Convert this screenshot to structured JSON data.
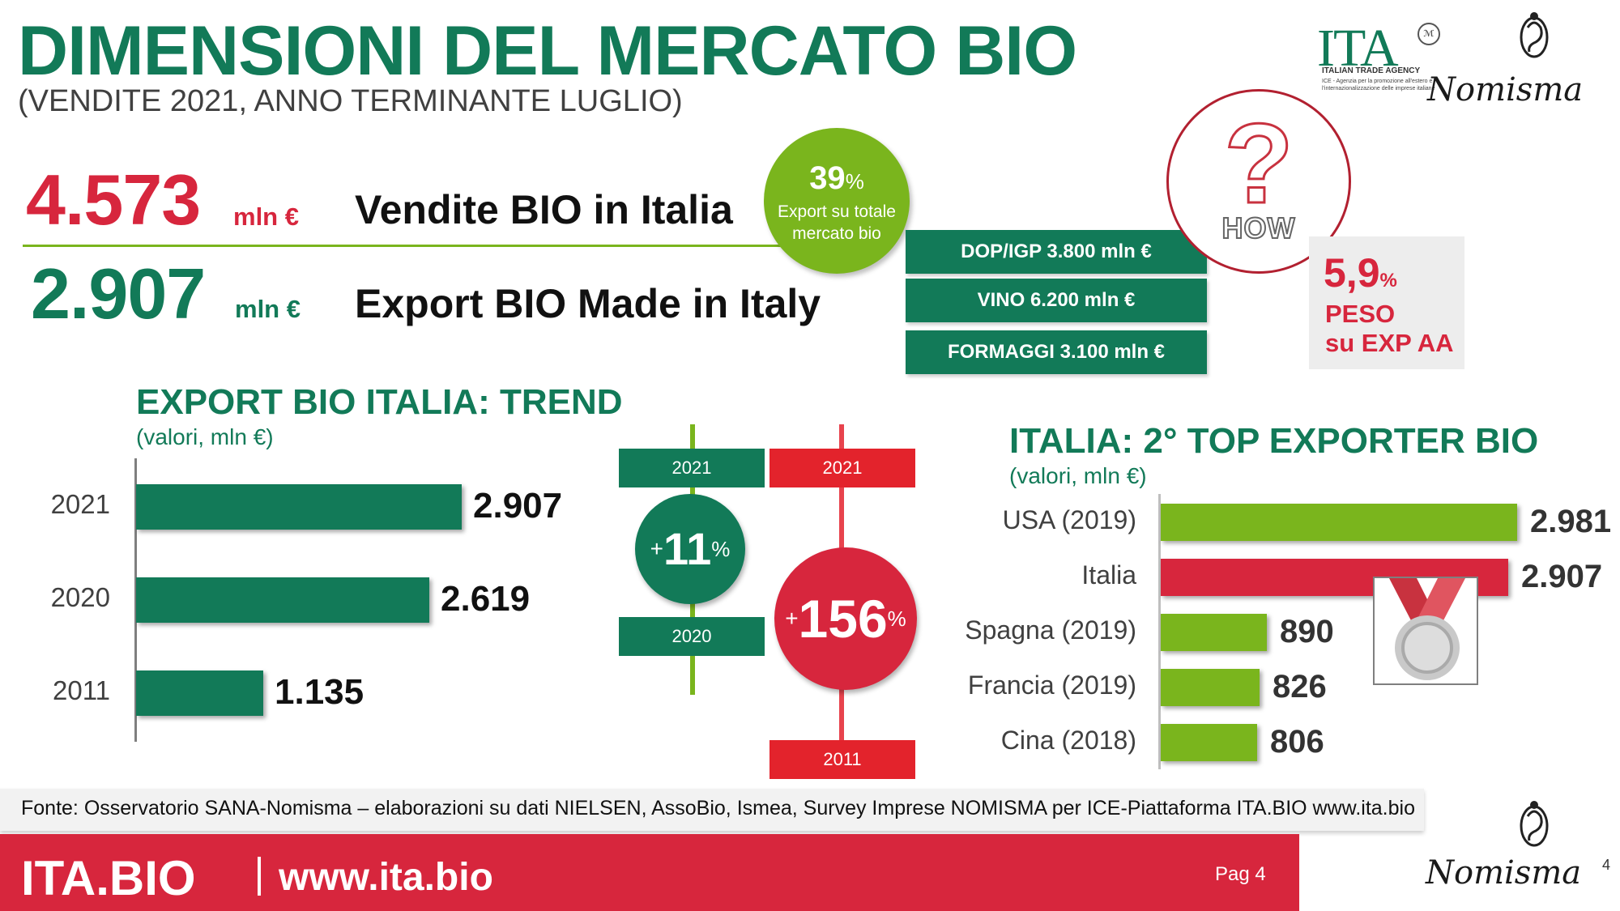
{
  "header": {
    "title": "DIMENSIONI DEL MERCATO BIO",
    "subtitle": "(VENDITE 2021, ANNO TERMINANTE LUGLIO)"
  },
  "logos": {
    "ita_letters": "ITA",
    "ita_agency": "ITALIAN TRADE AGENCY",
    "ita_sub": "ICE - Agenzia per la promozione all'estero e l'internazionalizzazione delle imprese italiane",
    "nomisma": "Nomisma"
  },
  "kpis": [
    {
      "value": "4.573",
      "unit": "mln €",
      "label": "Vendite BIO in Italia"
    },
    {
      "value": "2.907",
      "unit": "mln €",
      "label": "Export BIO Made in Italy"
    }
  ],
  "export_share": {
    "value": "39",
    "pct": "%",
    "text_line1": "Export su totale",
    "text_line2": "mercato bio"
  },
  "comparisons": [
    "DOP/IGP 3.800 mln €",
    "VINO 6.200 mln €",
    "FORMAGGI 3.100 mln €"
  ],
  "how_badge": {
    "text": "HOW"
  },
  "peso": {
    "value": "5,9",
    "pct": "%",
    "line1": "PESO",
    "line2": "su EXP AA"
  },
  "growth": {
    "green": {
      "from": "2020",
      "to": "2021",
      "plus": "+",
      "value": "11",
      "pct": "%"
    },
    "red": {
      "from": "2011",
      "to": "2021",
      "plus": "+",
      "value": "156",
      "pct": "%"
    }
  },
  "chart_data": [
    {
      "type": "bar",
      "orientation": "horizontal",
      "title": "EXPORT BIO ITALIA: TREND",
      "subtitle": "(valori, mln €)",
      "categories": [
        "2021",
        "2020",
        "2011"
      ],
      "values": [
        2907,
        2619,
        1135
      ],
      "value_labels": [
        "2.907",
        "2.619",
        "1.135"
      ],
      "colors": [
        "#127A58",
        "#127A58",
        "#127A58"
      ]
    },
    {
      "type": "bar",
      "orientation": "horizontal",
      "title": "ITALIA: 2° TOP EXPORTER BIO",
      "subtitle": "(valori, mln €)",
      "categories": [
        "USA (2019)",
        "Italia",
        "Spagna (2019)",
        "Francia (2019)",
        "Cina (2018)"
      ],
      "values": [
        2981,
        2907,
        890,
        826,
        806
      ],
      "value_labels": [
        "2.981",
        "2.907",
        "890",
        "826",
        "806"
      ],
      "colors": [
        "#7AB51D",
        "#D7263D",
        "#7AB51D",
        "#7AB51D",
        "#7AB51D"
      ]
    }
  ],
  "footer": {
    "source": "Fonte: Osservatorio SANA-Nomisma – elaborazioni su dati NIELSEN, AssoBio, Ismea, Survey Imprese NOMISMA per ICE-Piattaforma ITA.BIO www.ita.bio",
    "brand": "ITA.BIO",
    "url": "www.ita.bio",
    "page": "Pag 4",
    "page_number": "4"
  },
  "colors": {
    "green": "#127A58",
    "lime": "#7AB51D",
    "red": "#D7263D"
  }
}
